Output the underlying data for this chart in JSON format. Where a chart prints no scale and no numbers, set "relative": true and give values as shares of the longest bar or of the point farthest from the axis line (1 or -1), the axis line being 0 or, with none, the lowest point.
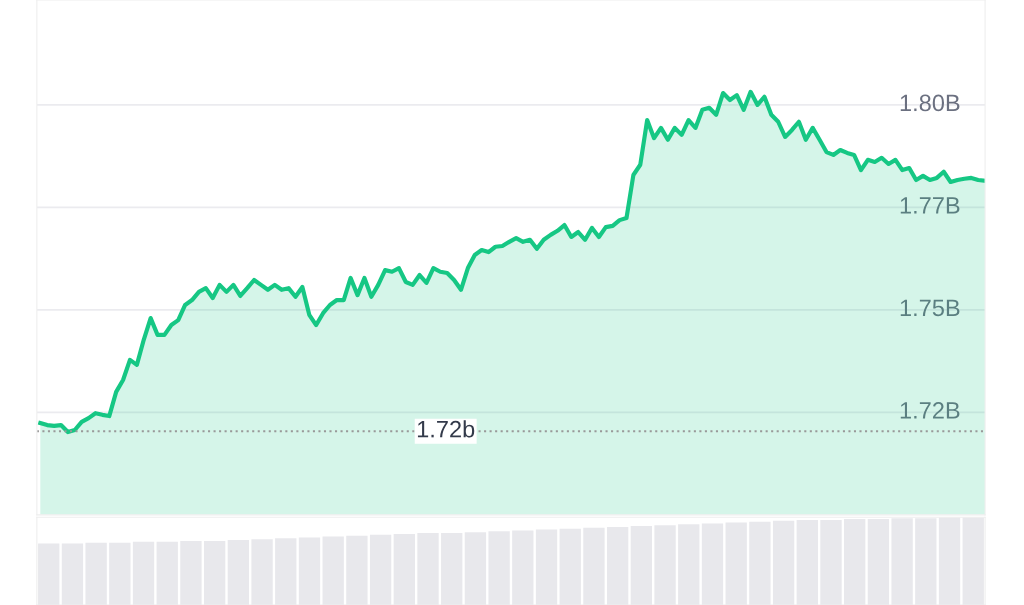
{
  "chart_data": [
    {
      "type": "area",
      "categories": [
        null,
        null,
        null,
        null,
        null,
        null,
        null,
        null,
        null,
        null,
        null,
        null,
        null,
        null,
        null,
        null,
        null,
        null,
        null,
        null,
        null,
        null,
        null,
        null,
        null,
        null,
        null,
        null,
        null,
        null,
        null,
        null,
        null,
        null,
        null,
        null,
        null,
        null,
        null,
        null,
        null,
        null,
        null,
        null,
        null,
        null,
        null,
        null,
        null,
        null,
        null,
        null,
        null,
        null,
        null,
        null,
        null,
        null,
        null,
        null,
        null,
        null,
        null,
        null,
        null,
        null,
        null,
        null,
        null,
        null,
        null,
        null,
        null,
        null,
        null,
        null,
        null,
        null,
        null,
        null,
        null,
        null,
        null,
        null,
        null,
        null,
        null,
        null,
        null,
        null,
        null,
        null,
        null,
        null,
        null,
        null,
        null,
        null,
        null,
        null,
        null,
        null,
        null,
        null,
        null,
        null,
        null,
        null,
        null,
        null,
        null,
        null,
        null,
        null,
        null,
        null,
        null,
        null,
        null,
        null,
        null,
        null,
        null,
        null,
        null,
        null,
        null,
        null,
        null,
        null,
        null,
        null,
        null,
        null,
        null,
        null,
        null,
        null
      ],
      "series": [
        {
          "color": "#16c784",
          "values": [
            1.7224,
            1.7219,
            1.7217,
            1.7219,
            1.7202,
            1.7207,
            1.7227,
            1.7236,
            1.7248,
            1.7244,
            1.7241,
            1.73,
            1.7329,
            1.7378,
            1.7366,
            1.7427,
            1.748,
            1.7439,
            1.7439,
            1.7463,
            1.7475,
            1.7512,
            1.7524,
            1.7544,
            1.7553,
            1.7529,
            1.7561,
            1.7544,
            1.7561,
            1.7534,
            1.7553,
            1.7573,
            1.7561,
            1.7549,
            1.7561,
            1.7549,
            1.7553,
            1.7532,
            1.7556,
            1.7488,
            1.7463,
            1.7492,
            1.7512,
            1.7524,
            1.7524,
            1.7578,
            1.7536,
            1.7578,
            1.7532,
            1.7561,
            1.7597,
            1.7593,
            1.7602,
            1.7568,
            1.7561,
            1.7585,
            1.7566,
            1.7602,
            1.7593,
            1.759,
            1.7573,
            1.7549,
            1.7602,
            1.7634,
            1.7646,
            1.7641,
            1.7654,
            1.7656,
            1.7666,
            1.7675,
            1.7666,
            1.7671,
            1.7649,
            1.7671,
            1.7683,
            1.7693,
            1.7707,
            1.7678,
            1.769,
            1.7671,
            1.77,
            1.7678,
            1.7702,
            1.7705,
            1.7719,
            1.7724,
            1.7829,
            1.7854,
            1.7963,
            1.7919,
            1.7944,
            1.7915,
            1.7944,
            1.7927,
            1.7963,
            1.7944,
            1.7988,
            1.7993,
            1.7976,
            1.8029,
            1.8012,
            1.8024,
            1.7988,
            1.8032,
            1.8,
            1.802,
            1.7976,
            1.7959,
            1.7922,
            1.7939,
            1.7959,
            1.7915,
            1.7944,
            1.7915,
            1.7885,
            1.7878,
            1.789,
            1.7883,
            1.7878,
            1.7841,
            1.7866,
            1.7861,
            1.7871,
            1.7856,
            1.7866,
            1.7841,
            1.7846,
            1.7817,
            1.7827,
            1.7817,
            1.7822,
            1.7837,
            1.7812,
            1.7817,
            1.782,
            1.7822,
            1.7817,
            1.7815
          ]
        }
      ],
      "ylim": [
        1.7,
        1.8256
      ],
      "yticks": [
        {
          "value": 1.725,
          "label": "1.72B"
        },
        {
          "value": 1.75,
          "label": "1.75B"
        },
        {
          "value": 1.775,
          "label": "1.77B"
        },
        {
          "value": 1.8,
          "label": "1.80B"
        }
      ],
      "grid": "y",
      "tick_labels": "y",
      "ref_lines": [
        {
          "axis": "y",
          "value": 1.7204,
          "label": "1.72b",
          "color": "#999999",
          "line_style": "dotted"
        }
      ]
    },
    {
      "type": "bar",
      "relative": true,
      "tick_labels": false,
      "categories": [
        null,
        null,
        null,
        null,
        null,
        null,
        null,
        null,
        null,
        null,
        null,
        null,
        null,
        null,
        null,
        null,
        null,
        null,
        null,
        null,
        null,
        null,
        null,
        null,
        null,
        null,
        null,
        null,
        null,
        null,
        null,
        null,
        null,
        null,
        null,
        null,
        null,
        null,
        null,
        null
      ],
      "series": [
        {
          "color": "#e8e8ec",
          "values": [
            0.7,
            0.7,
            0.71,
            0.71,
            0.72,
            0.72,
            0.73,
            0.73,
            0.74,
            0.75,
            0.76,
            0.77,
            0.78,
            0.79,
            0.8,
            0.81,
            0.82,
            0.82,
            0.83,
            0.84,
            0.85,
            0.86,
            0.87,
            0.88,
            0.89,
            0.9,
            0.91,
            0.92,
            0.93,
            0.94,
            0.95,
            0.96,
            0.97,
            0.97,
            0.98,
            0.98,
            0.99,
            0.99,
            1.0,
            1.0
          ]
        }
      ]
    }
  ]
}
